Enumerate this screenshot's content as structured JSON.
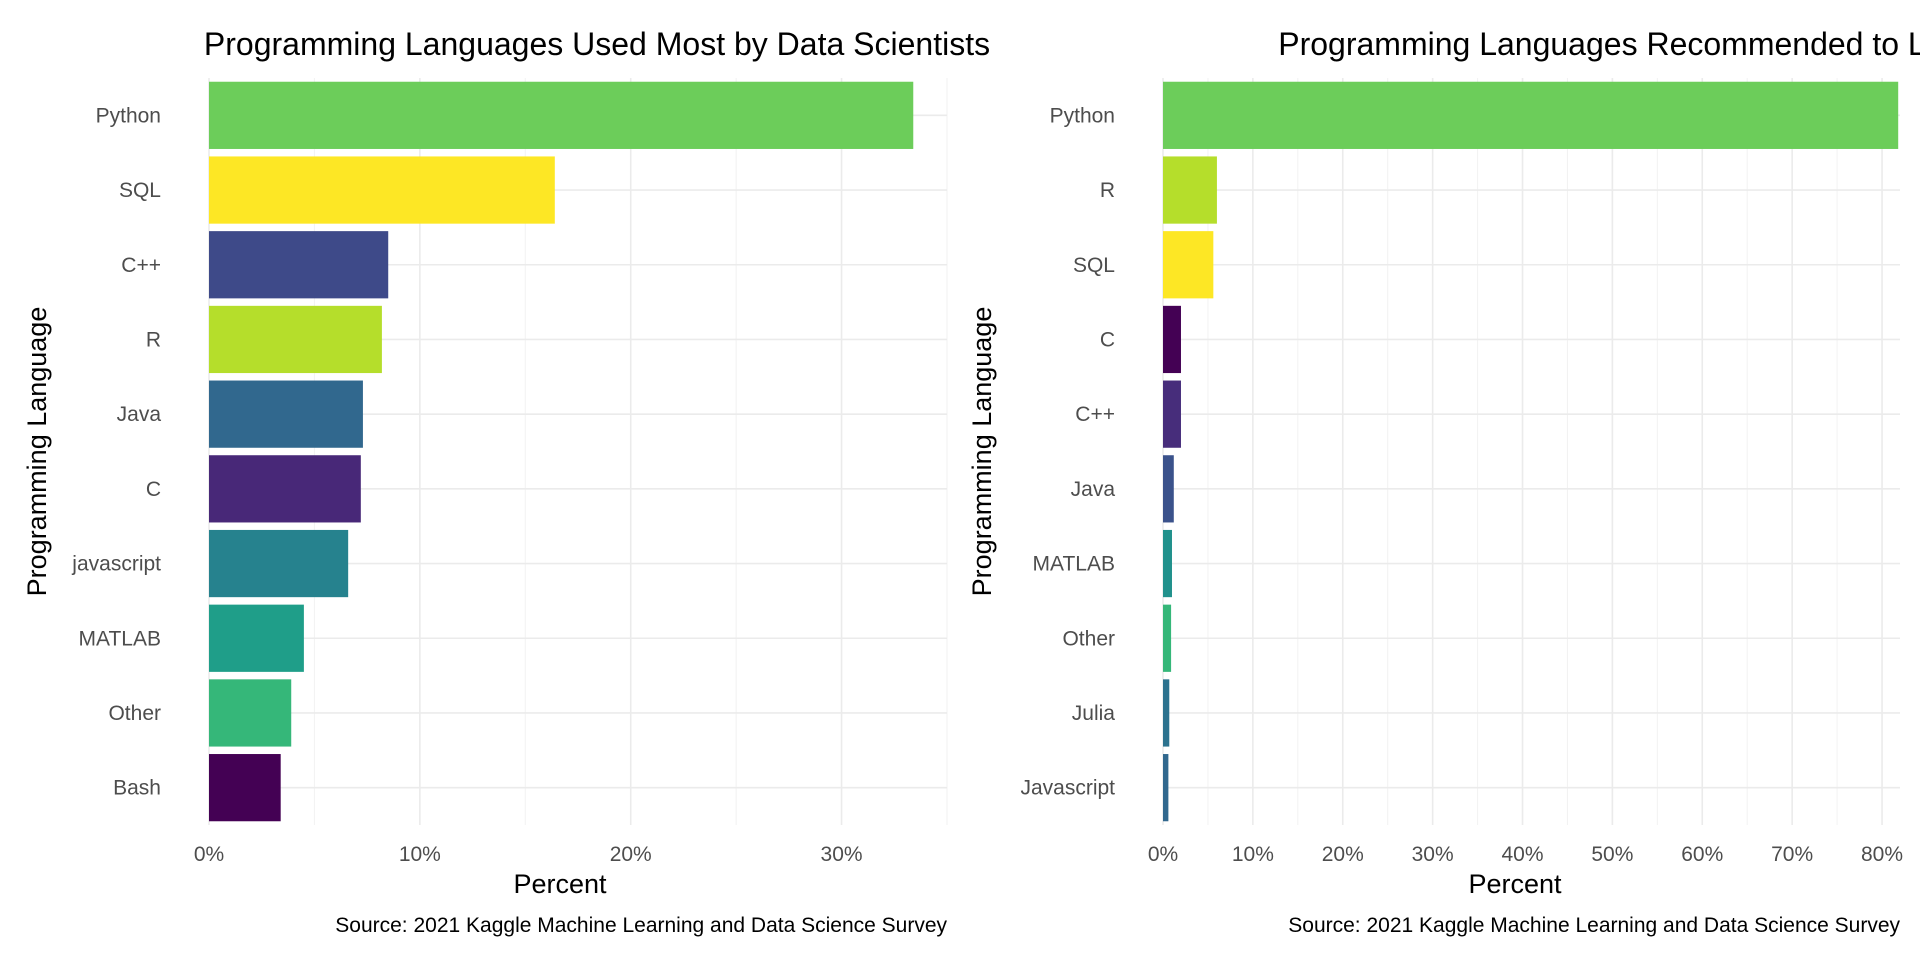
{
  "chart_data": [
    {
      "type": "bar",
      "orientation": "horizontal",
      "title": "Programming Languages Used Most by Data Scientists",
      "xlabel": "Percent",
      "ylabel": "Programming Language",
      "caption": "Source: 2021 Kaggle Machine Learning and Data Science Survey",
      "xlim": [
        0,
        35
      ],
      "x_ticks": [
        0,
        10,
        20,
        30
      ],
      "x_tick_labels": [
        "0%",
        "10%",
        "20%",
        "30%"
      ],
      "grid": true,
      "categories": [
        "Python",
        "SQL",
        "C++",
        "R",
        "Java",
        "C",
        "javascript",
        "MATLAB",
        "Other",
        "Bash"
      ],
      "values": [
        33.4,
        16.4,
        8.5,
        8.2,
        7.3,
        7.2,
        6.6,
        4.5,
        3.9,
        3.4
      ],
      "colors": [
        "#6ccd5a",
        "#fde725",
        "#3e4a89",
        "#b5de2b",
        "#31688e",
        "#482878",
        "#26828e",
        "#1f9e89",
        "#35b779",
        "#440154"
      ]
    },
    {
      "type": "bar",
      "orientation": "horizontal",
      "title": "Programming Languages Recommended to Learn",
      "xlabel": "Percent",
      "ylabel": "Programming Language",
      "caption": "Source: 2021 Kaggle Machine Learning and Data Science Survey",
      "xlim": [
        0,
        82
      ],
      "x_ticks": [
        0,
        10,
        20,
        30,
        40,
        50,
        60,
        70,
        80
      ],
      "x_tick_labels": [
        "0%",
        "10%",
        "20%",
        "30%",
        "40%",
        "50%",
        "60%",
        "70%",
        "80%"
      ],
      "grid": true,
      "categories": [
        "Python",
        "R",
        "SQL",
        "C",
        "C++",
        "Java",
        "MATLAB",
        "Other",
        "Julia",
        "Javascript"
      ],
      "values": [
        81.8,
        6.0,
        5.6,
        2.0,
        2.0,
        1.2,
        1.0,
        0.9,
        0.7,
        0.6
      ],
      "colors": [
        "#6ccd5a",
        "#b5de2b",
        "#fde725",
        "#440154",
        "#472d7b",
        "#3b528b",
        "#21918c",
        "#35b779",
        "#2c728e",
        "#31688e"
      ]
    }
  ]
}
